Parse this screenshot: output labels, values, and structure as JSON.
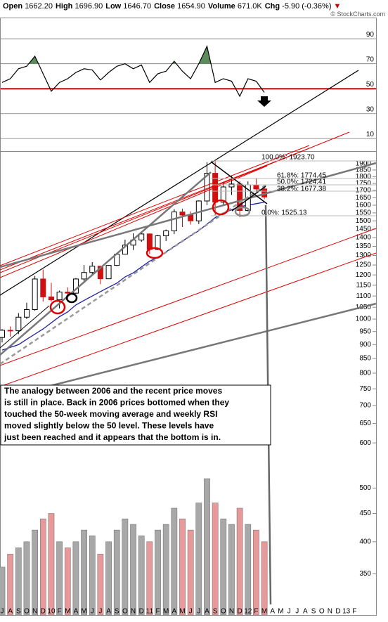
{
  "header": [
    {
      "label": "Open",
      "value": "1662.20"
    },
    {
      "label": "High",
      "value": "1696.90"
    },
    {
      "label": "Low",
      "value": "1646.70"
    },
    {
      "label": "Close",
      "value": "1654.90"
    },
    {
      "label": "Volume",
      "value": "671.0K"
    },
    {
      "label": "Chg",
      "value": "-5.90 (-0.36%)"
    }
  ],
  "watermark": "© StockCharts.com",
  "chart_data": [
    {
      "type": "line",
      "x": [
        "2009-07",
        "2009-08",
        "2009-09",
        "2009-10",
        "2009-11",
        "2009-12",
        "2010-01",
        "2010-02",
        "2010-03",
        "2010-04",
        "2010-05",
        "2010-06",
        "2010-07",
        "2010-08",
        "2010-09",
        "2010-10",
        "2010-11",
        "2010-12",
        "2011-01",
        "2011-02",
        "2011-03",
        "2011-04",
        "2011-05",
        "2011-06",
        "2011-07",
        "2011-08",
        "2011-09",
        "2011-10",
        "2011-11",
        "2011-12",
        "2012-01",
        "2012-02",
        "2012-03"
      ],
      "values": [
        55,
        58,
        66,
        68,
        76,
        62,
        48,
        55,
        58,
        63,
        66,
        65,
        57,
        63,
        68,
        70,
        66,
        69,
        55,
        62,
        64,
        72,
        64,
        58,
        70,
        84,
        55,
        58,
        56,
        44,
        58,
        56,
        47
      ],
      "color": "#000000",
      "ylim": [
        0,
        107
      ],
      "yticks": [
        10,
        30,
        50,
        70,
        90
      ],
      "reference_line": {
        "value": 50,
        "color": "#e00000"
      },
      "overbought": 70,
      "fill_color": "#5d8b5d",
      "xlim": [
        "2009-07",
        "2013-03"
      ]
    },
    {
      "type": "candlestick",
      "log_scale": true,
      "x": [
        "2009-07",
        "2009-08",
        "2009-09",
        "2009-10",
        "2009-11",
        "2009-12",
        "2010-01",
        "2010-02",
        "2010-03",
        "2010-04",
        "2010-05",
        "2010-06",
        "2010-07",
        "2010-08",
        "2010-09",
        "2010-10",
        "2010-11",
        "2010-12",
        "2011-01",
        "2011-02",
        "2011-03",
        "2011-04",
        "2011-05",
        "2011-06",
        "2011-07",
        "2011-08",
        "2011-09",
        "2011-10",
        "2011-11",
        "2011-12",
        "2012-01",
        "2012-02",
        "2012-03"
      ],
      "open": [
        927,
        955,
        953,
        1008,
        1040,
        1180,
        1096,
        1083,
        1118,
        1113,
        1180,
        1212,
        1244,
        1181,
        1248,
        1307,
        1357,
        1386,
        1421,
        1333,
        1410,
        1439,
        1556,
        1536,
        1500,
        1628,
        1825,
        1620,
        1725,
        1746,
        1565,
        1740,
        1711
      ],
      "high": [
        960,
        970,
        1025,
        1070,
        1195,
        1227,
        1162,
        1125,
        1140,
        1185,
        1250,
        1265,
        1245,
        1250,
        1310,
        1388,
        1425,
        1432,
        1425,
        1415,
        1447,
        1575,
        1578,
        1560,
        1632,
        1912,
        1920,
        1760,
        1805,
        1765,
        1765,
        1790,
        1720
      ],
      "low": [
        908,
        930,
        940,
        1000,
        1035,
        1075,
        1075,
        1045,
        1088,
        1110,
        1160,
        1200,
        1155,
        1180,
        1245,
        1315,
        1330,
        1375,
        1308,
        1330,
        1380,
        1420,
        1462,
        1477,
        1480,
        1600,
        1535,
        1600,
        1670,
        1523,
        1560,
        1690,
        1640
      ],
      "close": [
        955,
        953,
        1008,
        1040,
        1180,
        1096,
        1083,
        1118,
        1113,
        1180,
        1212,
        1244,
        1181,
        1248,
        1307,
        1357,
        1386,
        1421,
        1333,
        1410,
        1439,
        1556,
        1536,
        1500,
        1628,
        1825,
        1620,
        1725,
        1746,
        1565,
        1740,
        1711,
        1655
      ],
      "up_color": "#000000",
      "down_color": "#d01010",
      "series": [
        {
          "values": [
            880,
            890,
            900,
            920,
            940,
            960,
            985,
            1010,
            1030,
            1060,
            1080,
            1100,
            1120,
            1140,
            1160,
            1190,
            1210,
            1240,
            1270,
            1290,
            1320,
            1350,
            1380,
            1410,
            1440,
            1480,
            1520,
            1550,
            1570,
            1590,
            1600,
            1610,
            1620
          ],
          "color": "#1f1fa0"
        }
      ],
      "ylim": [
        295,
        2000
      ],
      "yticks": [
        1900,
        1850,
        1800,
        1750,
        1700,
        1650,
        1600,
        1550,
        1500,
        1450,
        1400,
        1350,
        1300,
        1250,
        1200,
        1150,
        1100,
        1050,
        1000,
        950,
        900,
        850,
        800,
        750,
        700,
        650,
        600
      ],
      "xlim": [
        "2009-07",
        "2013-03"
      ],
      "categories": [
        "J",
        "A",
        "S",
        "O",
        "N",
        "D",
        "10",
        "F",
        "M",
        "A",
        "M",
        "J",
        "J",
        "A",
        "S",
        "O",
        "N",
        "D",
        "11",
        "F",
        "M",
        "A",
        "M",
        "J",
        "J",
        "A",
        "S",
        "O",
        "N",
        "D",
        "12",
        "F",
        "M",
        "A",
        "M",
        "J",
        "J",
        "A",
        "S",
        "O",
        "N",
        "D",
        "13",
        "F"
      ],
      "fib_labels": [
        "100.0%: 1923.70",
        "61.8%: 1774.45",
        "50.0%: 1724.41",
        "38.2%: 1677.38",
        "0.0%: 1525.13"
      ],
      "annotation": [
        "The analogy between 2006 and the recent price moves",
        "is still in place. Back in 2006 prices bottomed when they",
        "touched the 50-week moving average and weekly RSI",
        "moved slightly below the 50 level. These levels have",
        "just been reached and it appears that the bottom is in."
      ]
    },
    {
      "type": "bar",
      "log_scale": true,
      "x": [
        "2009-07",
        "2009-08",
        "2009-09",
        "2009-10",
        "2009-11",
        "2009-12",
        "2010-01",
        "2010-02",
        "2010-03",
        "2010-04",
        "2010-05",
        "2010-06",
        "2010-07",
        "2010-08",
        "2010-09",
        "2010-10",
        "2010-11",
        "2010-12",
        "2011-01",
        "2011-02",
        "2011-03",
        "2011-04",
        "2011-05",
        "2011-06",
        "2011-07",
        "2011-08",
        "2011-09",
        "2011-10",
        "2011-11",
        "2011-12",
        "2012-01",
        "2012-02",
        "2012-03"
      ],
      "values": [
        360,
        380,
        390,
        400,
        420,
        440,
        450,
        400,
        390,
        400,
        420,
        410,
        380,
        400,
        420,
        440,
        430,
        410,
        400,
        420,
        430,
        460,
        440,
        420,
        470,
        520,
        470,
        440,
        430,
        460,
        430,
        420,
        400
      ],
      "up_color": "#a8a8a8",
      "down_color": "#e89a9a",
      "ylim": [
        295,
        2030
      ],
      "yticks": [
        350,
        400,
        450,
        500
      ],
      "xlim": [
        "2009-07",
        "2013-03"
      ]
    }
  ]
}
